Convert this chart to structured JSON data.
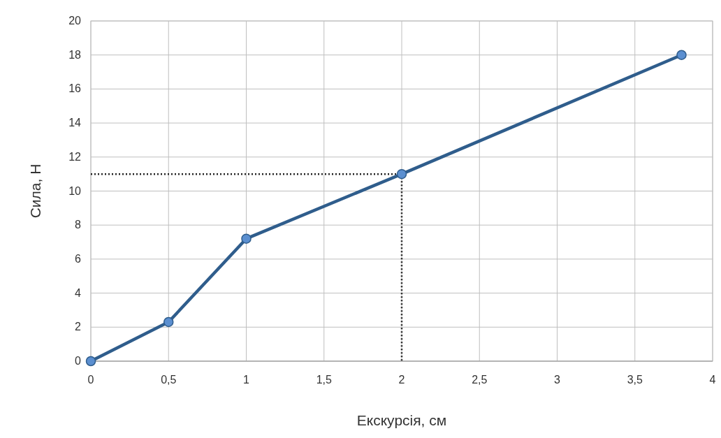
{
  "chart_data": {
    "type": "line",
    "xlabel": "Екскурсія, см",
    "ylabel": "Сила, Н",
    "xlim": [
      0,
      4
    ],
    "ylim": [
      0,
      20
    ],
    "xticks": [
      0,
      {
        "value": 0.5,
        "label": "0,5"
      },
      1,
      {
        "value": 1.5,
        "label": "1,5"
      },
      2,
      {
        "value": 2.5,
        "label": "2,5"
      },
      3,
      {
        "value": 3.5,
        "label": "3,5"
      },
      4
    ],
    "yticks": [
      0,
      2,
      4,
      6,
      8,
      10,
      12,
      14,
      16,
      18,
      20
    ],
    "grid": true,
    "series": [
      {
        "color": "#2f5d8c",
        "x": [
          0,
          0.5,
          1,
          2,
          3.8
        ],
        "values": [
          0,
          2.3,
          7.2,
          11,
          18
        ],
        "marker": "circle",
        "line_style": "solid"
      },
      {
        "color": "#222222",
        "x": [
          0,
          2,
          2
        ],
        "values": [
          11,
          11,
          0
        ],
        "marker": "none",
        "line_style": "dotted"
      }
    ]
  }
}
